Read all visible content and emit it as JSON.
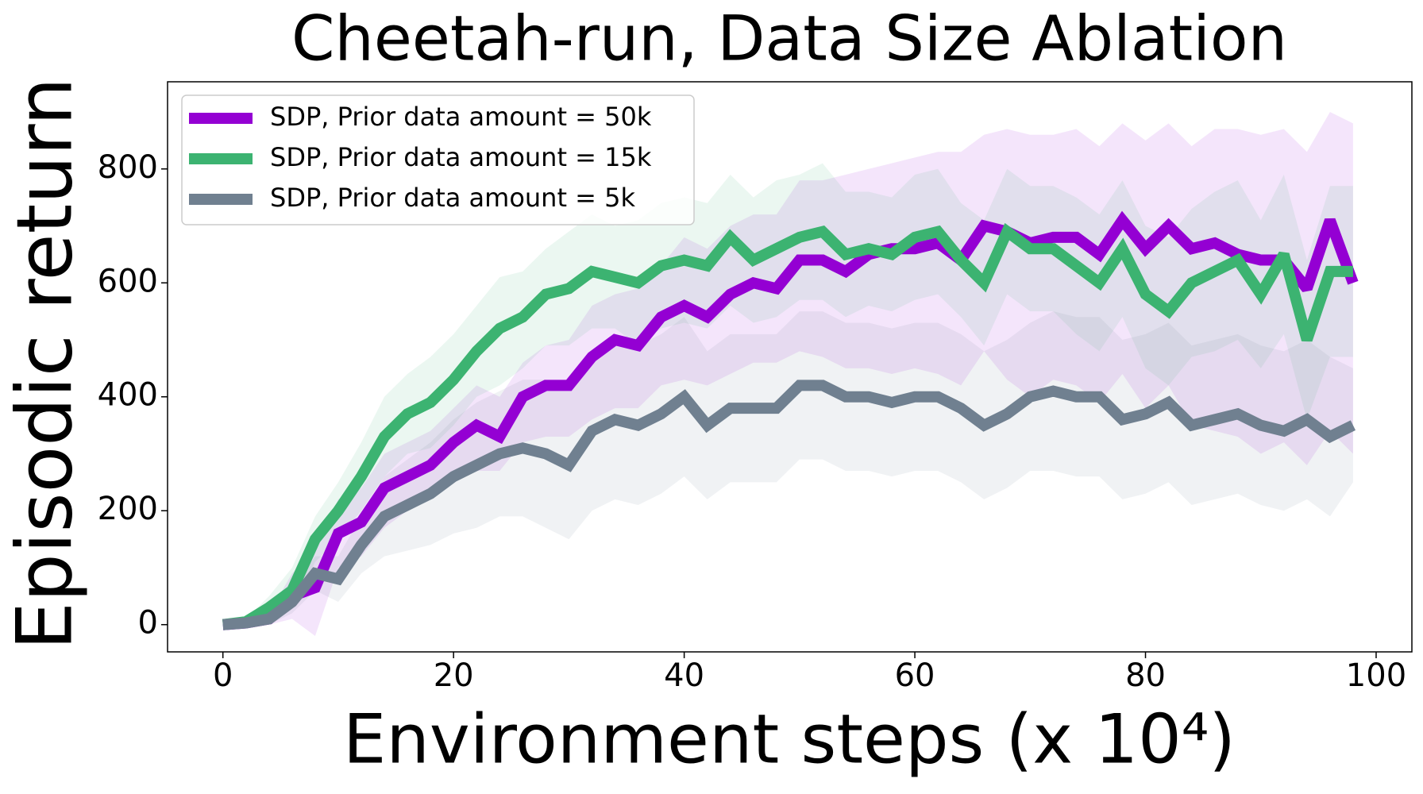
{
  "chart_data": {
    "type": "line",
    "title": "Cheetah-run, Data Size Ablation",
    "xlabel": "Environment steps (x 10⁴)",
    "ylabel": "Episodic return",
    "x": [
      0,
      2,
      4,
      6,
      8,
      10,
      12,
      14,
      16,
      18,
      20,
      22,
      24,
      26,
      28,
      30,
      32,
      34,
      36,
      38,
      40,
      42,
      44,
      46,
      48,
      50,
      52,
      54,
      56,
      58,
      60,
      62,
      64,
      66,
      68,
      70,
      72,
      74,
      76,
      78,
      80,
      82,
      84,
      86,
      88,
      90,
      92,
      94,
      96,
      98
    ],
    "series": [
      {
        "name": "SDP, Prior data amount = 50k",
        "color": "#9400d3",
        "values": [
          0,
          3,
          10,
          50,
          65,
          160,
          180,
          240,
          260,
          280,
          320,
          350,
          330,
          400,
          420,
          420,
          470,
          500,
          490,
          540,
          560,
          540,
          580,
          600,
          590,
          640,
          640,
          620,
          650,
          660,
          660,
          670,
          640,
          700,
          690,
          670,
          680,
          680,
          650,
          710,
          660,
          700,
          660,
          670,
          650,
          640,
          640,
          590,
          710,
          600
        ],
        "lower": [
          0,
          0,
          0,
          10,
          -20,
          100,
          120,
          170,
          200,
          220,
          250,
          270,
          270,
          320,
          330,
          330,
          360,
          380,
          380,
          420,
          430,
          420,
          440,
          460,
          460,
          480,
          470,
          450,
          450,
          440,
          450,
          440,
          420,
          480,
          430,
          400,
          430,
          420,
          390,
          440,
          380,
          420,
          350,
          340,
          330,
          300,
          320,
          280,
          340,
          300
        ],
        "upper": [
          0,
          10,
          20,
          90,
          130,
          220,
          240,
          300,
          320,
          340,
          380,
          420,
          400,
          460,
          490,
          500,
          560,
          580,
          590,
          630,
          680,
          660,
          700,
          720,
          720,
          780,
          780,
          790,
          800,
          810,
          820,
          830,
          830,
          860,
          870,
          860,
          860,
          870,
          840,
          880,
          850,
          880,
          840,
          870,
          870,
          860,
          870,
          830,
          900,
          880
        ]
      },
      {
        "name": "SDP, Prior data amount = 15k",
        "color": "#3cb371",
        "values": [
          0,
          5,
          30,
          60,
          150,
          200,
          260,
          330,
          370,
          390,
          430,
          480,
          520,
          540,
          580,
          590,
          620,
          610,
          600,
          630,
          640,
          630,
          680,
          640,
          660,
          680,
          690,
          650,
          660,
          650,
          680,
          690,
          640,
          600,
          690,
          660,
          660,
          630,
          600,
          660,
          580,
          550,
          600,
          620,
          640,
          580,
          650,
          500,
          620,
          620
        ],
        "lower": [
          0,
          0,
          10,
          30,
          110,
          150,
          200,
          260,
          300,
          310,
          350,
          400,
          420,
          450,
          490,
          490,
          520,
          520,
          490,
          520,
          530,
          520,
          560,
          530,
          540,
          570,
          570,
          540,
          560,
          550,
          570,
          580,
          540,
          490,
          580,
          550,
          550,
          510,
          480,
          540,
          450,
          420,
          470,
          480,
          500,
          450,
          510,
          360,
          470,
          470
        ],
        "upper": [
          0,
          10,
          50,
          100,
          190,
          250,
          320,
          400,
          440,
          470,
          510,
          560,
          610,
          620,
          660,
          690,
          720,
          700,
          710,
          740,
          750,
          740,
          790,
          750,
          780,
          790,
          810,
          760,
          760,
          750,
          790,
          800,
          740,
          710,
          800,
          770,
          770,
          750,
          720,
          780,
          700,
          680,
          730,
          760,
          780,
          710,
          790,
          640,
          770,
          770
        ]
      },
      {
        "name": "SDP, Prior data amount = 5k",
        "color": "#708090",
        "values": [
          0,
          3,
          10,
          40,
          90,
          80,
          140,
          190,
          210,
          230,
          260,
          280,
          300,
          310,
          300,
          280,
          340,
          360,
          350,
          370,
          400,
          350,
          380,
          380,
          380,
          420,
          420,
          400,
          400,
          390,
          400,
          400,
          380,
          350,
          370,
          400,
          410,
          400,
          400,
          360,
          370,
          390,
          350,
          360,
          370,
          350,
          340,
          360,
          330,
          350
        ],
        "lower": [
          0,
          0,
          0,
          20,
          60,
          40,
          90,
          120,
          130,
          140,
          160,
          170,
          190,
          190,
          170,
          150,
          200,
          220,
          210,
          230,
          260,
          220,
          250,
          250,
          250,
          290,
          290,
          270,
          270,
          260,
          270,
          270,
          250,
          220,
          240,
          270,
          270,
          260,
          260,
          220,
          230,
          250,
          210,
          220,
          230,
          210,
          200,
          220,
          190,
          250
        ],
        "upper": [
          0,
          10,
          20,
          60,
          120,
          120,
          190,
          260,
          290,
          320,
          360,
          390,
          410,
          430,
          430,
          410,
          480,
          500,
          490,
          510,
          540,
          480,
          510,
          510,
          510,
          550,
          550,
          530,
          530,
          520,
          530,
          530,
          510,
          480,
          500,
          530,
          550,
          540,
          540,
          500,
          510,
          530,
          490,
          500,
          510,
          490,
          480,
          500,
          470,
          450
        ]
      }
    ],
    "xlim": [
      -4.8,
      103.1
    ],
    "ylim": [
      -47.8,
      953
    ],
    "xticks": [
      0,
      20,
      40,
      60,
      80,
      100
    ],
    "yticks": [
      0,
      200,
      400,
      600,
      800
    ],
    "legend": "upper left",
    "band_opacity": 0.1
  }
}
